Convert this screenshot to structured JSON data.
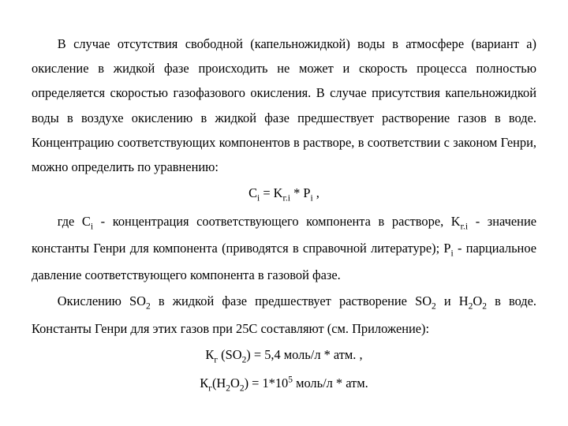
{
  "typography": {
    "font_family": "Times New Roman",
    "font_size_pt": 12.3,
    "line_height": 1.9,
    "text_color": "#000000",
    "background_color": "#ffffff",
    "text_align_body": "justify",
    "text_indent_em": 2
  },
  "paragraphs": {
    "p1": "В случае отсутствия свободной (капельножидкой) воды в атмосфере (вариант а) окисление в жидкой фазе происходить не может и скорость процесса полностью определяется скоростью газофазового окисления. В случае присутствия капельножидкой воды в воздухе окислению в жидкой фазе предшествует растворение газов в воде. Концентрацию соответствующих компонентов в растворе, в соответствии с законом Генри, можно определить по уравнению:",
    "eq1_lhs": "C",
    "eq1_sub1": "i",
    "eq1_mid1": " = K",
    "eq1_sub2": "г.i",
    "eq1_mid2": " * P",
    "eq1_sub3": "i",
    "eq1_tail": " ,",
    "p2a": "где C",
    "p2a_sub": "i",
    "p2b": " - концентрация соответствующего компонента в растворе, K",
    "p2b_sub": "г.i",
    "p2c": " - значение константы Генри для компонента (приводятся в справочной литературе); P",
    "p2c_sub": "i",
    "p2d": " - парциальное давление соответствующего компонента в газовой фазе.",
    "p3a": "Окислению SO",
    "p3a_sub": "2",
    "p3b": " в жидкой фазе предшествует растворение SO",
    "p3b_sub": "2",
    "p3c": " и H",
    "p3c_sub": "2",
    "p3d": "O",
    "p3d_sub": "2",
    "p3e": " в воде. Константы Генри для этих газов при 25С составляют (см. Приложение):",
    "eq2a": "К",
    "eq2a_sub": "г",
    "eq2b": " (SO",
    "eq2b_sub": "2",
    "eq2c": ") = 5,4 моль/л * атм. ,",
    "eq3a": "К",
    "eq3a_sub": "г",
    "eq3b": "(H",
    "eq3b_sub": "2",
    "eq3c": "O",
    "eq3c_sub": "2",
    "eq3d": ") = 1*10",
    "eq3d_sup": "5",
    "eq3e": " моль/л * атм."
  }
}
